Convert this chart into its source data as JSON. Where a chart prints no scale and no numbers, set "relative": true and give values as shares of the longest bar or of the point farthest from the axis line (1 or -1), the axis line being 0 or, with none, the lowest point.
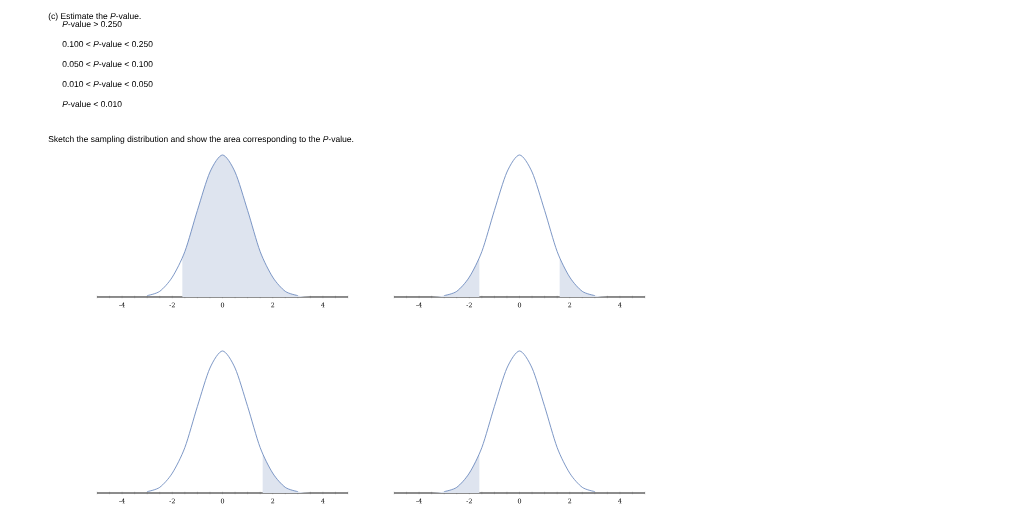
{
  "chart_data": [
    {
      "type": "line",
      "relative": true,
      "xlim": [
        -5,
        5
      ],
      "annotations": [
        "(c) Estimate the *P*-value.",
        "*P*-value > 0.250",
        "0.100 < *P*-value < 0.250",
        "0.050 < *P*-value < 0.100",
        "0.010 < *P*-value < 0.050",
        "*P*-value < 0.010",
        "Sketch the sampling distribution and show the area corresponding to the *P*-value."
      ],
      "xticks": [
        {
          "value": -5,
          "label": null
        },
        {
          "value": -4.5,
          "label": null
        },
        -4,
        {
          "value": -3.5,
          "label": null
        },
        {
          "value": -3,
          "label": null
        },
        {
          "value": -2.5,
          "label": null
        },
        -2,
        {
          "value": -1.5,
          "label": null
        },
        {
          "value": -1,
          "label": null
        },
        {
          "value": -0.5,
          "label": null
        },
        0,
        {
          "value": 0.5,
          "label": null
        },
        {
          "value": 1,
          "label": null
        },
        {
          "value": 1.5,
          "label": null
        },
        2,
        {
          "value": 2.5,
          "label": null
        },
        {
          "value": 3,
          "label": null
        },
        {
          "value": 3.5,
          "label": null
        },
        4,
        {
          "value": 4.5,
          "label": null
        },
        {
          "value": 5,
          "label": null
        }
      ],
      "series": [
        {
          "type": "area",
          "color": "#dee4ef",
          "x": [
            -1.6,
            -1.5,
            -1,
            -0.5,
            0,
            0.5,
            1,
            1.5,
            2,
            2.5,
            3,
            3.5,
            4,
            4.5,
            5
          ],
          "values": [
            0.28,
            0.32,
            0.61,
            0.88,
            1,
            0.88,
            0.61,
            0.32,
            0.14,
            0.04,
            0.01,
            0,
            0,
            0,
            0
          ]
        },
        {
          "color": "#6f8cc0",
          "x": [
            -3,
            -2.5,
            -2,
            -1.5,
            -1,
            -0.5,
            0,
            0.5,
            1,
            1.5,
            2,
            2.5,
            3
          ],
          "values": [
            0.01,
            0.04,
            0.14,
            0.32,
            0.61,
            0.88,
            1,
            0.88,
            0.61,
            0.32,
            0.14,
            0.04,
            0.01
          ]
        }
      ]
    },
    {
      "type": "line",
      "relative": true,
      "xlim": [
        -5,
        5
      ],
      "xticks": [
        {
          "value": -5,
          "label": null
        },
        {
          "value": -4.5,
          "label": null
        },
        -4,
        {
          "value": -3.5,
          "label": null
        },
        {
          "value": -3,
          "label": null
        },
        {
          "value": -2.5,
          "label": null
        },
        -2,
        {
          "value": -1.5,
          "label": null
        },
        {
          "value": -1,
          "label": null
        },
        {
          "value": -0.5,
          "label": null
        },
        0,
        {
          "value": 0.5,
          "label": null
        },
        {
          "value": 1,
          "label": null
        },
        {
          "value": 1.5,
          "label": null
        },
        2,
        {
          "value": 2.5,
          "label": null
        },
        {
          "value": 3,
          "label": null
        },
        {
          "value": 3.5,
          "label": null
        },
        4,
        {
          "value": 4.5,
          "label": null
        },
        {
          "value": 5,
          "label": null
        }
      ],
      "series": [
        {
          "type": "area",
          "color": "#dee4ef",
          "x": [
            -5,
            -4.5,
            -4,
            -3.5,
            -3,
            -2.5,
            -2,
            -1.6
          ],
          "values": [
            0,
            0,
            0,
            0,
            0.01,
            0.04,
            0.14,
            0.28
          ]
        },
        {
          "type": "area",
          "color": "#dee4ef",
          "x": [
            1.6,
            2,
            2.5,
            3,
            3.5,
            4,
            4.5,
            5
          ],
          "values": [
            0.28,
            0.14,
            0.04,
            0.01,
            0,
            0,
            0,
            0
          ]
        },
        {
          "color": "#6f8cc0",
          "x": [
            -3,
            -2.5,
            -2,
            -1.5,
            -1,
            -0.5,
            0,
            0.5,
            1,
            1.5,
            2,
            2.5,
            3
          ],
          "values": [
            0.01,
            0.04,
            0.14,
            0.32,
            0.61,
            0.88,
            1,
            0.88,
            0.61,
            0.32,
            0.14,
            0.04,
            0.01
          ]
        }
      ]
    },
    {
      "type": "line",
      "relative": true,
      "xlim": [
        -5,
        5
      ],
      "xticks": [
        {
          "value": -5,
          "label": null
        },
        {
          "value": -4.5,
          "label": null
        },
        -4,
        {
          "value": -3.5,
          "label": null
        },
        {
          "value": -3,
          "label": null
        },
        {
          "value": -2.5,
          "label": null
        },
        -2,
        {
          "value": -1.5,
          "label": null
        },
        {
          "value": -1,
          "label": null
        },
        {
          "value": -0.5,
          "label": null
        },
        0,
        {
          "value": 0.5,
          "label": null
        },
        {
          "value": 1,
          "label": null
        },
        {
          "value": 1.5,
          "label": null
        },
        2,
        {
          "value": 2.5,
          "label": null
        },
        {
          "value": 3,
          "label": null
        },
        {
          "value": 3.5,
          "label": null
        },
        4,
        {
          "value": 4.5,
          "label": null
        },
        {
          "value": 5,
          "label": null
        }
      ],
      "series": [
        {
          "type": "area",
          "color": "#dee4ef",
          "x": [
            1.6,
            2,
            2.5,
            3,
            3.5,
            4,
            4.5,
            5
          ],
          "values": [
            0.28,
            0.14,
            0.04,
            0.01,
            0,
            0,
            0,
            0
          ]
        },
        {
          "color": "#6f8cc0",
          "x": [
            -3,
            -2.5,
            -2,
            -1.5,
            -1,
            -0.5,
            0,
            0.5,
            1,
            1.5,
            2,
            2.5,
            3
          ],
          "values": [
            0.01,
            0.04,
            0.14,
            0.32,
            0.61,
            0.88,
            1,
            0.88,
            0.61,
            0.32,
            0.14,
            0.04,
            0.01
          ]
        }
      ]
    },
    {
      "type": "line",
      "relative": true,
      "xlim": [
        -5,
        5
      ],
      "xticks": [
        {
          "value": -5,
          "label": null
        },
        {
          "value": -4.5,
          "label": null
        },
        -4,
        {
          "value": -3.5,
          "label": null
        },
        {
          "value": -3,
          "label": null
        },
        {
          "value": -2.5,
          "label": null
        },
        -2,
        {
          "value": -1.5,
          "label": null
        },
        {
          "value": -1,
          "label": null
        },
        {
          "value": -0.5,
          "label": null
        },
        0,
        {
          "value": 0.5,
          "label": null
        },
        {
          "value": 1,
          "label": null
        },
        {
          "value": 1.5,
          "label": null
        },
        2,
        {
          "value": 2.5,
          "label": null
        },
        {
          "value": 3,
          "label": null
        },
        {
          "value": 3.5,
          "label": null
        },
        4,
        {
          "value": 4.5,
          "label": null
        },
        {
          "value": 5,
          "label": null
        }
      ],
      "series": [
        {
          "type": "area",
          "color": "#dee4ef",
          "x": [
            -5,
            -4.5,
            -4,
            -3.5,
            -3,
            -2.5,
            -2,
            -1.6
          ],
          "values": [
            0,
            0,
            0,
            0,
            0.01,
            0.04,
            0.14,
            0.28
          ]
        },
        {
          "color": "#6f8cc0",
          "x": [
            -3,
            -2.5,
            -2,
            -1.5,
            -1,
            -0.5,
            0,
            0.5,
            1,
            1.5,
            2,
            2.5,
            3
          ],
          "values": [
            0.01,
            0.04,
            0.14,
            0.32,
            0.61,
            0.88,
            1,
            0.88,
            0.61,
            0.32,
            0.14,
            0.04,
            0.01
          ]
        }
      ]
    }
  ]
}
